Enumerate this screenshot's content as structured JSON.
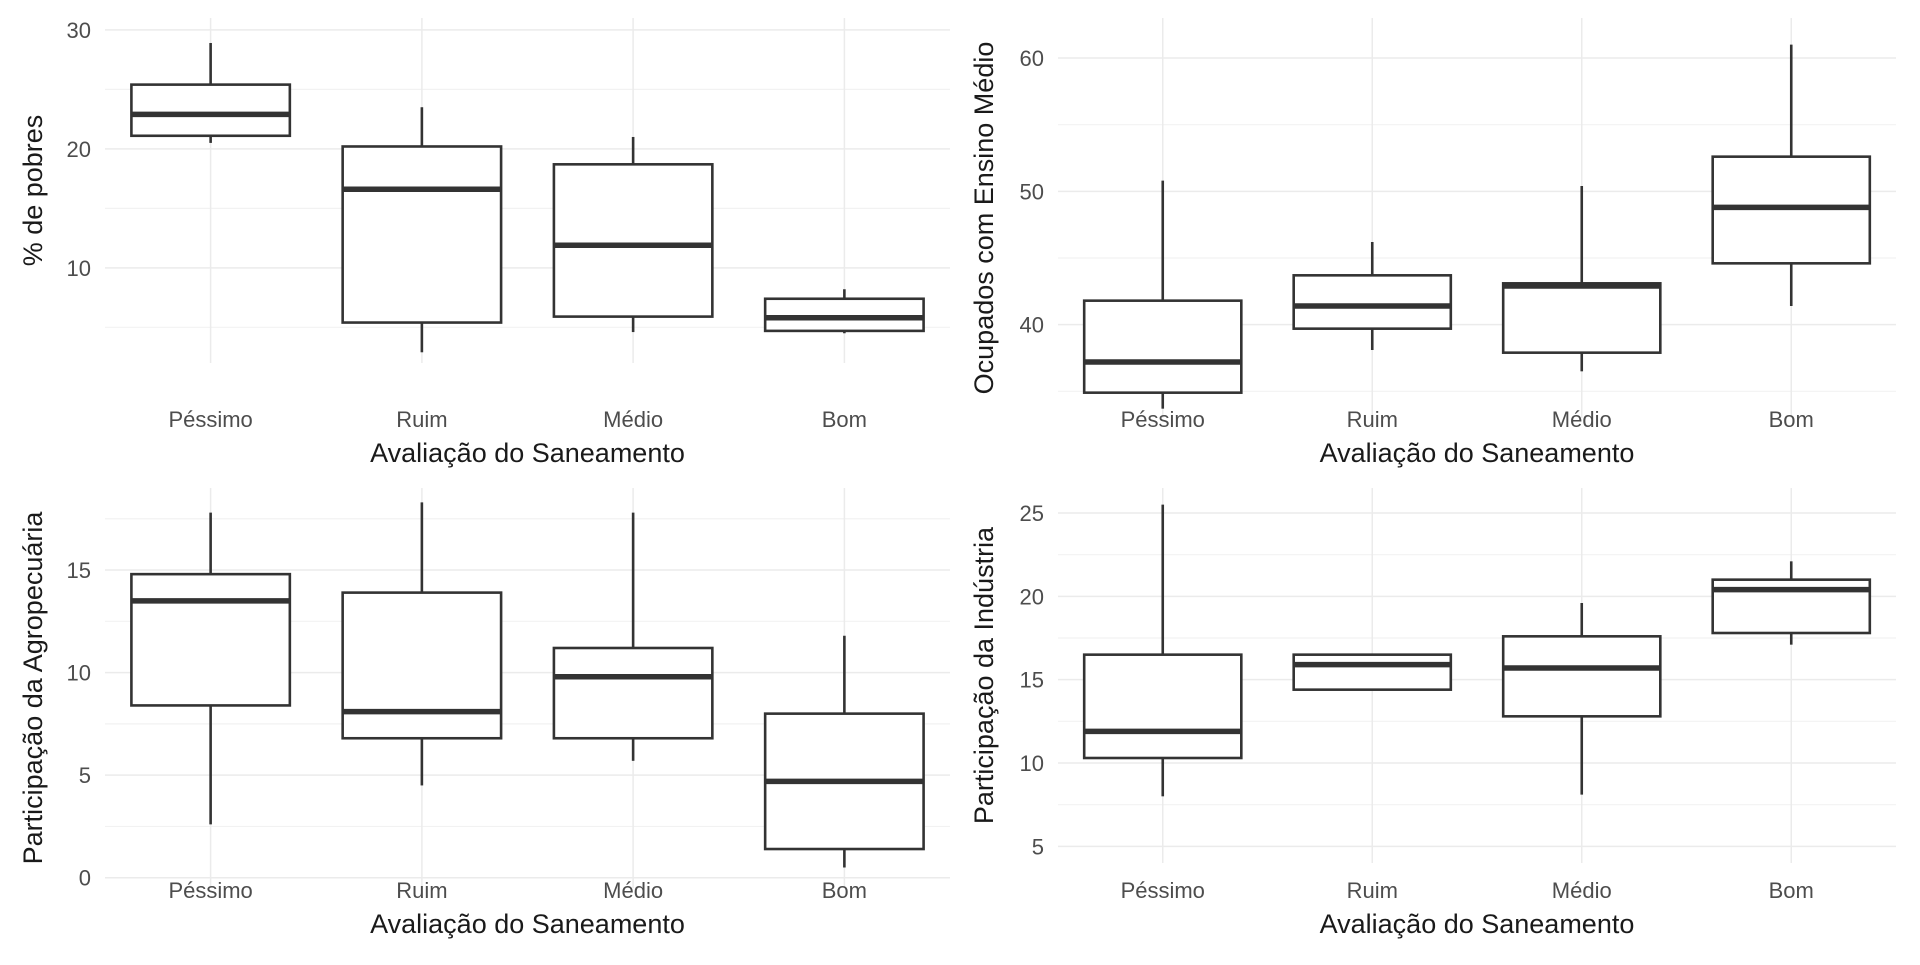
{
  "chart_data": [
    {
      "type": "box",
      "panel": "top-left",
      "xlabel": "Avaliação do Saneamento",
      "ylabel": "% de pobres",
      "categories": [
        "Péssimo",
        "Ruim",
        "Médio",
        "Bom"
      ],
      "ylim": [
        2,
        31
      ],
      "yticks": [
        10,
        20,
        30
      ],
      "yticks_minor": [
        5,
        15,
        25
      ],
      "boxes": [
        {
          "category": "Péssimo",
          "lower_whisker": 20.5,
          "q1": 21.1,
          "median": 22.9,
          "q3": 25.4,
          "upper_whisker": 28.9
        },
        {
          "category": "Ruim",
          "lower_whisker": 2.9,
          "q1": 5.4,
          "median": 16.6,
          "q3": 20.2,
          "upper_whisker": 23.5
        },
        {
          "category": "Médio",
          "lower_whisker": 4.6,
          "q1": 5.9,
          "median": 11.9,
          "q3": 18.7,
          "upper_whisker": 21.0
        },
        {
          "category": "Bom",
          "lower_whisker": 4.5,
          "q1": 4.7,
          "median": 5.8,
          "q3": 7.4,
          "upper_whisker": 8.2
        }
      ]
    },
    {
      "type": "box",
      "panel": "top-right",
      "xlabel": "Avaliação do Saneamento",
      "ylabel": "Ocupados com Ensino Médio",
      "categories": [
        "Péssimo",
        "Ruim",
        "Médio",
        "Bom"
      ],
      "ylim": [
        33,
        63
      ],
      "yticks": [
        40,
        50,
        60
      ],
      "yticks_minor": [
        35,
        45,
        55
      ],
      "boxes": [
        {
          "category": "Péssimo",
          "lower_whisker": 33.7,
          "q1": 34.9,
          "median": 37.2,
          "q3": 41.8,
          "upper_whisker": 50.8
        },
        {
          "category": "Ruim",
          "lower_whisker": 38.1,
          "q1": 39.7,
          "median": 41.4,
          "q3": 43.7,
          "upper_whisker": 46.2
        },
        {
          "category": "Médio",
          "lower_whisker": 36.5,
          "q1": 37.9,
          "median": 42.9,
          "q3": 43.1,
          "upper_whisker": 50.4
        },
        {
          "category": "Bom",
          "lower_whisker": 41.4,
          "q1": 44.6,
          "median": 48.8,
          "q3": 52.6,
          "upper_whisker": 61.0
        }
      ]
    },
    {
      "type": "box",
      "panel": "bottom-left",
      "xlabel": "Avaliação do Saneamento",
      "ylabel": "Participação da Agropecuária",
      "categories": [
        "Péssimo",
        "Ruim",
        "Médio",
        "Bom"
      ],
      "ylim": [
        -0.5,
        19
      ],
      "yticks": [
        0,
        5,
        10,
        15
      ],
      "yticks_minor": [
        2.5,
        7.5,
        12.5,
        17.5
      ],
      "boxes": [
        {
          "category": "Péssimo",
          "lower_whisker": 2.6,
          "q1": 8.4,
          "median": 13.5,
          "q3": 14.8,
          "upper_whisker": 17.8
        },
        {
          "category": "Ruim",
          "lower_whisker": 4.5,
          "q1": 6.8,
          "median": 8.1,
          "q3": 13.9,
          "upper_whisker": 18.3
        },
        {
          "category": "Médio",
          "lower_whisker": 5.7,
          "q1": 6.8,
          "median": 9.8,
          "q3": 11.2,
          "upper_whisker": 17.8
        },
        {
          "category": "Bom",
          "lower_whisker": 0.5,
          "q1": 1.4,
          "median": 4.7,
          "q3": 8.0,
          "upper_whisker": 11.8
        }
      ]
    },
    {
      "type": "box",
      "panel": "bottom-right",
      "xlabel": "Avaliação do Saneamento",
      "ylabel": "Participação da Indústria",
      "categories": [
        "Péssimo",
        "Ruim",
        "Médio",
        "Bom"
      ],
      "ylim": [
        4,
        26.5
      ],
      "yticks": [
        5,
        10,
        15,
        20,
        25
      ],
      "yticks_minor": [
        7.5,
        12.5,
        17.5,
        22.5
      ],
      "boxes": [
        {
          "category": "Péssimo",
          "lower_whisker": 8.0,
          "q1": 10.3,
          "median": 11.9,
          "q3": 16.5,
          "upper_whisker": 25.5
        },
        {
          "category": "Ruim",
          "lower_whisker": 14.4,
          "q1": 14.4,
          "median": 15.9,
          "q3": 16.5,
          "upper_whisker": 16.5
        },
        {
          "category": "Médio",
          "lower_whisker": 8.1,
          "q1": 12.8,
          "median": 15.7,
          "q3": 17.6,
          "upper_whisker": 19.6
        },
        {
          "category": "Bom",
          "lower_whisker": 17.1,
          "q1": 17.8,
          "median": 20.4,
          "q3": 21.0,
          "upper_whisker": 22.1
        }
      ]
    }
  ]
}
